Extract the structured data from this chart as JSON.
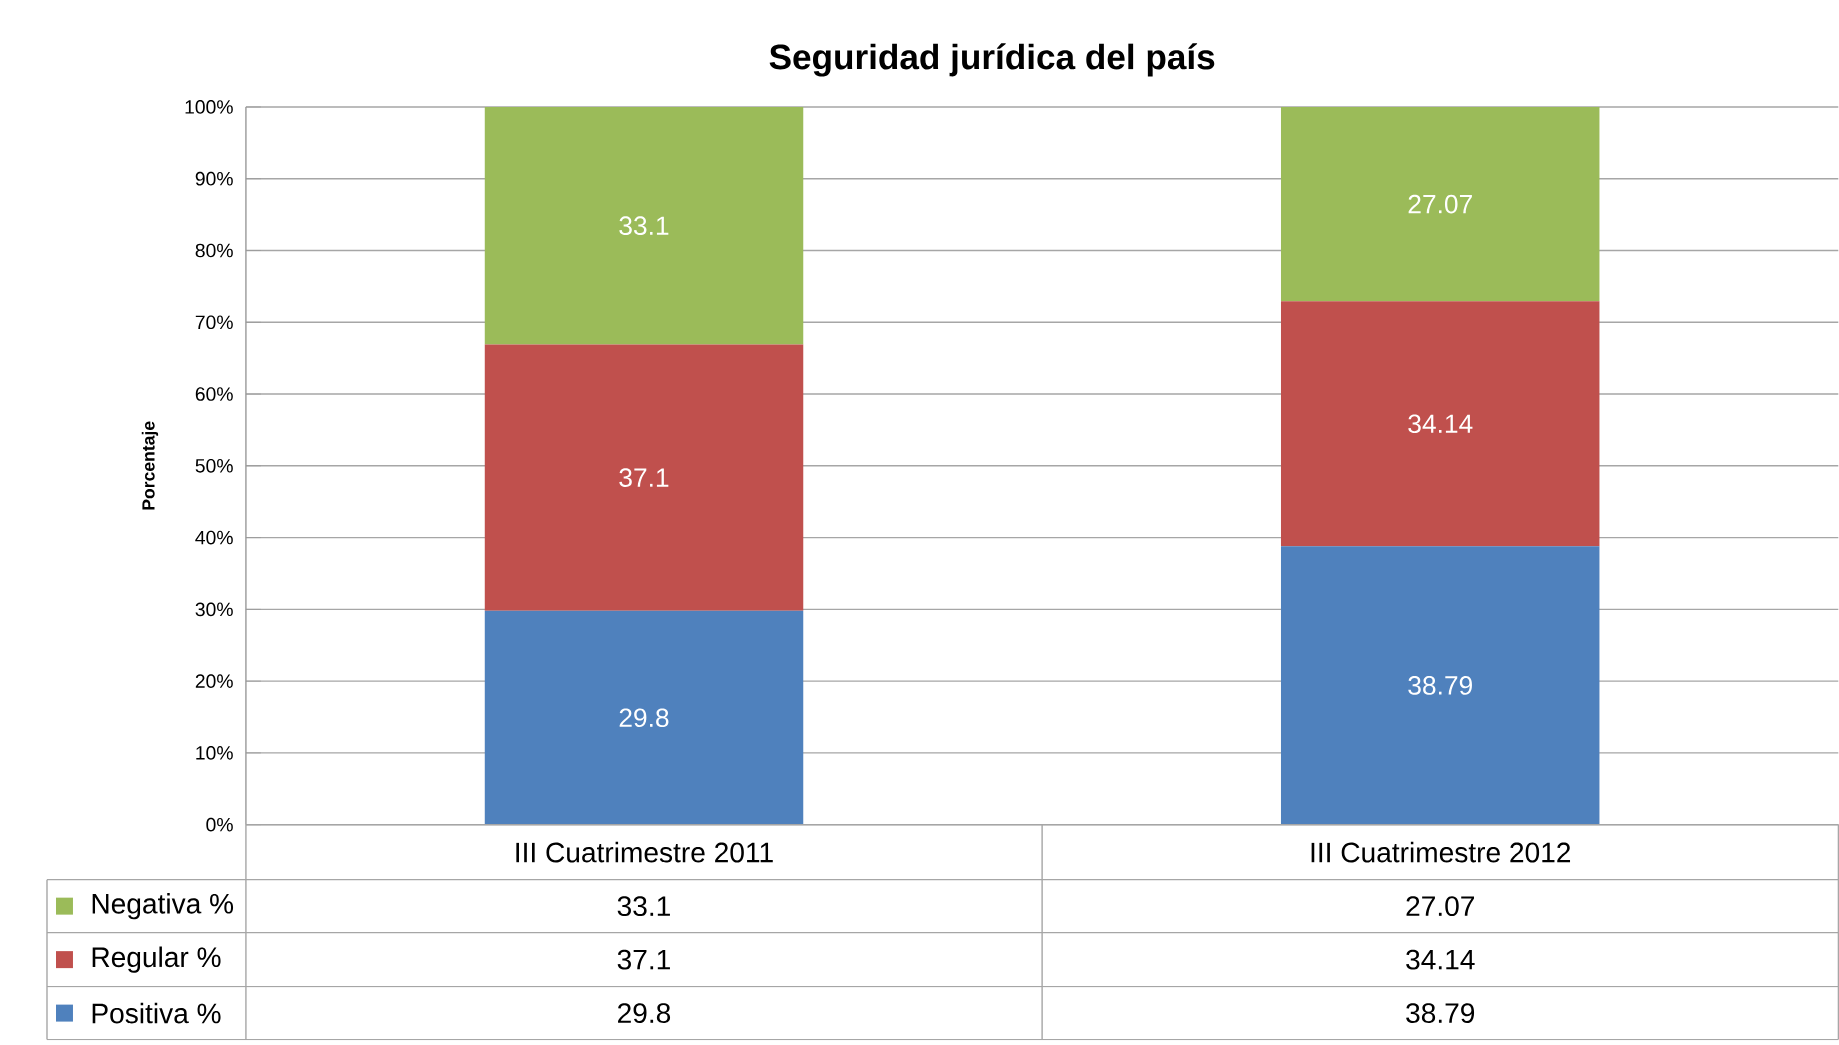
{
  "chart_data": {
    "type": "bar",
    "title": "Seguridad jurídica del país",
    "ylabel": "Porcentaje",
    "categories": [
      "III Cuatrimestre 2011",
      "III Cuatrimestre 2012"
    ],
    "stacked": true,
    "series": [
      {
        "name": "Positiva %",
        "color": "#4f81bd",
        "values": [
          29.8,
          38.79
        ],
        "value_labels": [
          "29.8",
          "38.79"
        ]
      },
      {
        "name": "Regular %",
        "color": "#c0504d",
        "values": [
          37.1,
          34.14
        ],
        "value_labels": [
          "37.1",
          "34.14"
        ]
      },
      {
        "name": "Negativa %",
        "color": "#9bbb59",
        "values": [
          33.1,
          27.07
        ],
        "value_labels": [
          "33.1",
          "27.07"
        ]
      }
    ],
    "ylim": [
      0,
      100
    ],
    "yticks": [
      {
        "value": 0,
        "label": "0%"
      },
      {
        "value": 10,
        "label": "10%"
      },
      {
        "value": 20,
        "label": "20%"
      },
      {
        "value": 30,
        "label": "30%"
      },
      {
        "value": 40,
        "label": "40%"
      },
      {
        "value": 50,
        "label": "50%"
      },
      {
        "value": 60,
        "label": "60%"
      },
      {
        "value": 70,
        "label": "70%"
      },
      {
        "value": 80,
        "label": "80%"
      },
      {
        "value": 90,
        "label": "90%"
      },
      {
        "value": 100,
        "label": "100%"
      }
    ],
    "annotations": [
      "33.1",
      "27.07",
      "37.1",
      "34.14",
      "29.8",
      "38.79"
    ],
    "grid": "y",
    "legend": "bottom",
    "data_labels": true
  }
}
